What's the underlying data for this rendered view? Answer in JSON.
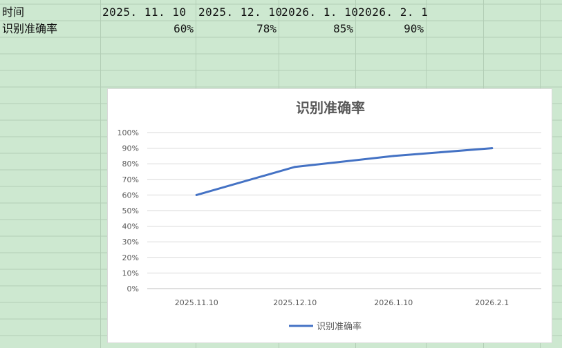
{
  "sheet": {
    "header_row": {
      "label": "时间",
      "dates": [
        "2025. 11. 10",
        "2025. 12. 10",
        "2026. 1. 10",
        "2026. 2. 1"
      ]
    },
    "data_row": {
      "label": "识别准确率",
      "values": [
        "60%",
        "78%",
        "85%",
        "90%"
      ]
    },
    "background_color": "#cde8d0",
    "gridline_color": "#b3ceb6"
  },
  "chart_data": {
    "type": "line",
    "title": "识别准确率",
    "categories": [
      "2025.11.10",
      "2025.12.10",
      "2026.1.10",
      "2026.2.1"
    ],
    "series": [
      {
        "name": "识别准确率",
        "values": [
          0.6,
          0.78,
          0.85,
          0.9
        ],
        "color": "#4472c4"
      }
    ],
    "ylim": [
      0,
      1
    ],
    "y_ticks": [
      "0%",
      "10%",
      "20%",
      "30%",
      "40%",
      "50%",
      "60%",
      "70%",
      "80%",
      "90%",
      "100%"
    ],
    "grid": true,
    "legend": "bottom-center",
    "xlabel": "",
    "ylabel": ""
  }
}
